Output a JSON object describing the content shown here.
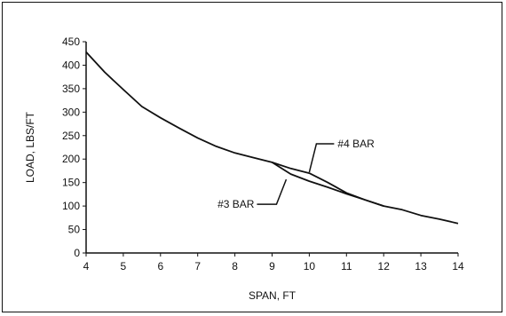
{
  "chart_data": {
    "type": "line",
    "title": "",
    "xlabel": "SPAN, FT",
    "ylabel": "LOAD, LBS/FT",
    "xlim": [
      4,
      14
    ],
    "ylim": [
      0,
      450
    ],
    "xticks": [
      4,
      5,
      6,
      7,
      8,
      9,
      10,
      11,
      12,
      13,
      14
    ],
    "yticks": [
      0,
      50,
      100,
      150,
      200,
      250,
      300,
      350,
      400,
      450
    ],
    "grid": false,
    "legend": "none",
    "series": [
      {
        "name": "#4 BAR",
        "x": [
          4,
          4.5,
          5,
          5.5,
          6,
          6.5,
          7,
          7.5,
          8,
          8.5,
          9,
          9.5,
          10,
          10.5,
          11,
          11.5,
          12,
          12.5,
          13,
          13.5,
          14
        ],
        "y": [
          428,
          385,
          348,
          312,
          288,
          266,
          245,
          227,
          213,
          203,
          193,
          180,
          170,
          150,
          128,
          113,
          100,
          92,
          80,
          72,
          63
        ]
      },
      {
        "name": "#3 BAR",
        "x": [
          9,
          9.5,
          10,
          10.5,
          11,
          11.5,
          12
        ],
        "y": [
          193,
          168,
          153,
          140,
          126,
          113,
          100
        ]
      }
    ],
    "annotations": [
      {
        "text": "#4 BAR",
        "x": 10,
        "y": 172
      },
      {
        "text": "#3 BAR",
        "x": 9.5,
        "y": 168
      }
    ]
  }
}
